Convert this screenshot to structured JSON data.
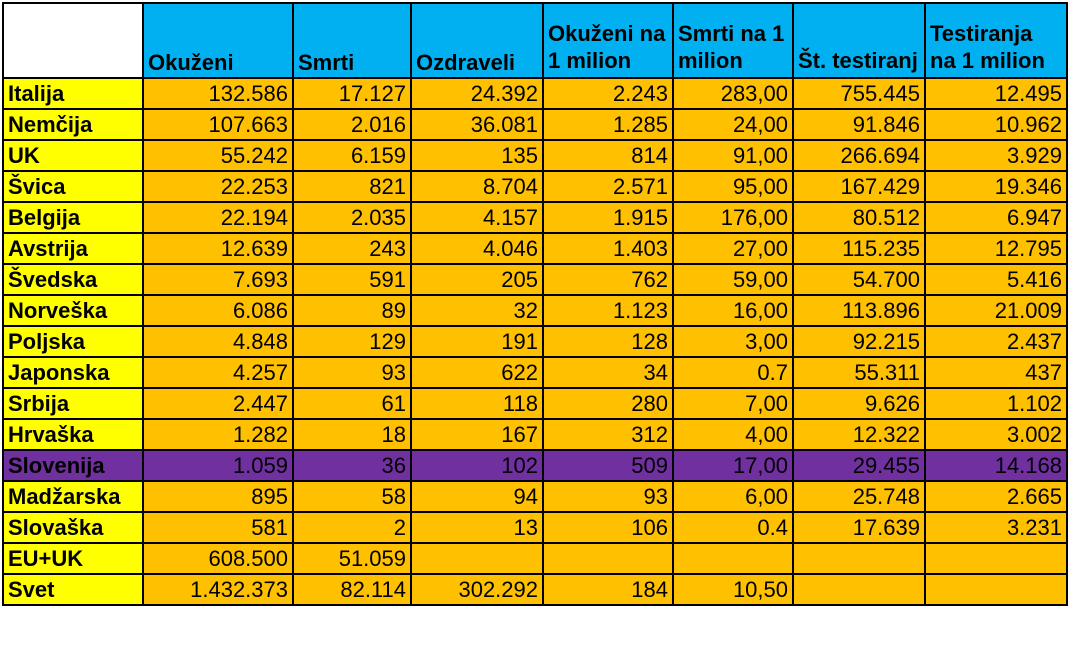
{
  "headers": [
    "Okuženi",
    "Smrti",
    "Ozdraveli",
    "Okuženi na 1 milion",
    "Smrti na 1 milion",
    "Št. testiranj",
    "Testiranja na 1 milion"
  ],
  "rows": [
    {
      "country": "Italija",
      "values": [
        "132.586",
        "17.127",
        "24.392",
        "2.243",
        "283,00",
        "755.445",
        "12.495"
      ]
    },
    {
      "country": "Nemčija",
      "values": [
        "107.663",
        "2.016",
        "36.081",
        "1.285",
        "24,00",
        "91.846",
        "10.962"
      ]
    },
    {
      "country": "UK",
      "values": [
        "55.242",
        "6.159",
        "135",
        "814",
        "91,00",
        "266.694",
        "3.929"
      ]
    },
    {
      "country": "Švica",
      "values": [
        "22.253",
        "821",
        "8.704",
        "2.571",
        "95,00",
        "167.429",
        "19.346"
      ]
    },
    {
      "country": "Belgija",
      "values": [
        "22.194",
        "2.035",
        "4.157",
        "1.915",
        "176,00",
        "80.512",
        "6.947"
      ]
    },
    {
      "country": "Avstrija",
      "values": [
        "12.639",
        "243",
        "4.046",
        "1.403",
        "27,00",
        "115.235",
        "12.795"
      ]
    },
    {
      "country": "Švedska",
      "values": [
        "7.693",
        "591",
        "205",
        "762",
        "59,00",
        "54.700",
        "5.416"
      ]
    },
    {
      "country": "Norveška",
      "values": [
        "6.086",
        "89",
        "32",
        "1.123",
        "16,00",
        "113.896",
        "21.009"
      ]
    },
    {
      "country": "Poljska",
      "values": [
        "4.848",
        "129",
        "191",
        "128",
        "3,00",
        "92.215",
        "2.437"
      ]
    },
    {
      "country": "Japonska",
      "values": [
        "4.257",
        "93",
        "622",
        "34",
        "0.7",
        "55.311",
        "437"
      ]
    },
    {
      "country": "Srbija",
      "values": [
        "2.447",
        "61",
        "118",
        "280",
        "7,00",
        "9.626",
        "1.102"
      ]
    },
    {
      "country": "Hrvaška",
      "values": [
        "1.282",
        "18",
        "167",
        "312",
        "4,00",
        "12.322",
        "3.002"
      ]
    },
    {
      "country": "Slovenija",
      "values": [
        "1.059",
        "36",
        "102",
        "509",
        "17,00",
        "29.455",
        "14.168"
      ],
      "highlight": true
    },
    {
      "country": "Madžarska",
      "values": [
        "895",
        "58",
        "94",
        "93",
        "6,00",
        "25.748",
        "2.665"
      ]
    },
    {
      "country": "Slovaška",
      "values": [
        "581",
        "2",
        "13",
        "106",
        "0.4",
        "17.639",
        "3.231"
      ]
    },
    {
      "country": "EU+UK",
      "values": [
        "608.500",
        "51.059",
        "",
        "",
        "",
        "",
        ""
      ]
    },
    {
      "country": "Svet",
      "values": [
        "1.432.373",
        "82.114",
        "302.292",
        "184",
        "10,50",
        "",
        ""
      ]
    }
  ],
  "colors": {
    "header": "#00b0f0",
    "country_cell": "#ffff00",
    "data_cell": "#ffc000",
    "highlight_row": "#7030a0"
  }
}
